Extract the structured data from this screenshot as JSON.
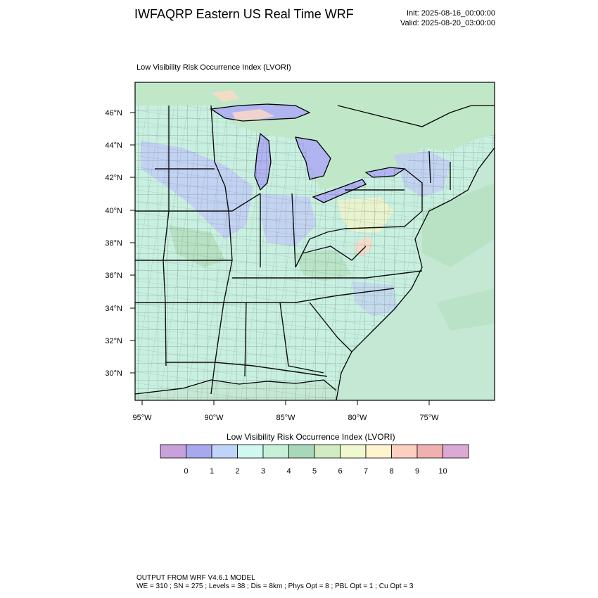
{
  "header": {
    "title": "IWFAQRP Eastern US Real Time WRF",
    "init": "Init: 2025-08-16_00:00:00",
    "valid": "Valid: 2025-08-20_03:00:00"
  },
  "plot": {
    "subtitle": "Low Visibility Risk Occurrence Index   (LVORI)",
    "lat_labels": [
      "46°N",
      "44°N",
      "42°N",
      "40°N",
      "38°N",
      "36°N",
      "34°N",
      "32°N",
      "30°N"
    ],
    "lon_labels": [
      "95°W",
      "90°W",
      "85°W",
      "80°W",
      "75°W"
    ]
  },
  "colorbar": {
    "title": "Low Visibility Risk Occurrence Index  (LVORI)",
    "labels": [
      "0",
      "1",
      "2",
      "3",
      "4",
      "5",
      "6",
      "7",
      "8",
      "9",
      "10"
    ],
    "colors": [
      "#c8a0dc",
      "#a8a8ec",
      "#c0d4f8",
      "#d0f8f0",
      "#c8f0d8",
      "#a8d8b8",
      "#d0ecc0",
      "#f0f8d0",
      "#fff4d0",
      "#fcd0c0",
      "#f0b0b0",
      "#dca8d4"
    ]
  },
  "map_colors": {
    "ocean": "#c4e8d4",
    "land": "#c8f0e0",
    "low_lake": "#b0b4f0",
    "blue_patch": "#c0c8f8",
    "green_patch": "#b0dcb8",
    "warm_patch": "#fcd8c8",
    "yellow_patch": "#f4f4c8",
    "canada": "#c0e8c8"
  },
  "footer": {
    "line1": "OUTPUT FROM WRF V4.6.1 MODEL",
    "line2": "WE = 310 ; SN = 275 ; Levels = 38 ; Dis = 8km ; Phys Opt = 8 ; PBL Opt = 1 ; Cu Opt = 3"
  }
}
